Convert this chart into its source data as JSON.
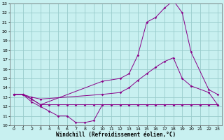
{
  "xlabel": "Windchill (Refroidissement éolien,°C)",
  "xlim": [
    -0.5,
    23.5
  ],
  "ylim": [
    10,
    23
  ],
  "xticks": [
    0,
    1,
    2,
    3,
    4,
    5,
    6,
    7,
    8,
    9,
    10,
    11,
    12,
    13,
    14,
    15,
    16,
    17,
    18,
    19,
    20,
    21,
    22,
    23
  ],
  "yticks": [
    10,
    11,
    12,
    13,
    14,
    15,
    16,
    17,
    18,
    19,
    20,
    21,
    22,
    23
  ],
  "bg_color": "#c8f0f0",
  "line_color": "#880088",
  "grid_color": "#99cccc",
  "line1_x": [
    0,
    1,
    2,
    3,
    4,
    5,
    6,
    7,
    8,
    9,
    10,
    11,
    12,
    13,
    14,
    15,
    16,
    17,
    18,
    19,
    20,
    21,
    22,
    23
  ],
  "line1_y": [
    13.3,
    13.3,
    12.5,
    12.0,
    11.5,
    11.0,
    11.0,
    10.3,
    10.3,
    10.5,
    12.2,
    12.2,
    12.2,
    12.2,
    12.2,
    12.2,
    12.2,
    12.2,
    12.2,
    12.2,
    12.2,
    12.2,
    12.2,
    12.2
  ],
  "line2_x": [
    0,
    1,
    2,
    3,
    4,
    5,
    6,
    7,
    8,
    9,
    10,
    11,
    12,
    13,
    14,
    15,
    16,
    17,
    18,
    19,
    20,
    21,
    22,
    23
  ],
  "line2_y": [
    13.3,
    13.3,
    12.8,
    12.2,
    12.2,
    12.2,
    12.2,
    12.2,
    12.2,
    12.2,
    12.2,
    12.2,
    12.2,
    12.2,
    12.2,
    12.2,
    12.2,
    12.2,
    12.2,
    12.2,
    12.2,
    12.2,
    12.2,
    12.2
  ],
  "line3_x": [
    0,
    1,
    2,
    3,
    10,
    12,
    13,
    14,
    15,
    16,
    17,
    18,
    19,
    20,
    22,
    23
  ],
  "line3_y": [
    13.3,
    13.3,
    12.8,
    12.2,
    14.7,
    15.0,
    15.5,
    17.5,
    21.0,
    21.5,
    22.5,
    23.3,
    22.0,
    17.8,
    13.8,
    13.3
  ],
  "line4_x": [
    0,
    1,
    2,
    3,
    10,
    12,
    13,
    14,
    15,
    16,
    17,
    18,
    19,
    20,
    22,
    23
  ],
  "line4_y": [
    13.3,
    13.3,
    13.0,
    12.8,
    13.3,
    13.5,
    14.0,
    14.8,
    15.5,
    16.2,
    16.8,
    17.2,
    15.0,
    14.2,
    13.5,
    12.2
  ]
}
